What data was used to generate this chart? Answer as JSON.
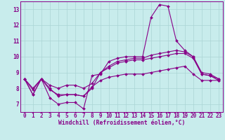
{
  "xlabel": "Windchill (Refroidissement éolien,°C)",
  "bg_color": "#c8ecec",
  "grid_color": "#aad4d4",
  "line_color": "#880088",
  "x_ticks": [
    0,
    1,
    2,
    3,
    4,
    5,
    6,
    7,
    8,
    9,
    10,
    11,
    12,
    13,
    14,
    15,
    16,
    17,
    18,
    19,
    20,
    21,
    22,
    23
  ],
  "y_ticks": [
    7,
    8,
    9,
    10,
    11,
    12,
    13
  ],
  "ylim": [
    6.5,
    13.5
  ],
  "xlim": [
    -0.5,
    23.5
  ],
  "lines": [
    [
      8.6,
      7.6,
      8.6,
      7.4,
      7.0,
      7.1,
      7.1,
      6.7,
      8.8,
      8.9,
      9.7,
      9.9,
      10.0,
      10.0,
      10.0,
      12.5,
      13.3,
      13.2,
      11.0,
      10.4,
      10.0,
      8.9,
      8.8,
      8.5
    ],
    [
      8.6,
      7.6,
      8.6,
      8.0,
      7.5,
      7.6,
      7.6,
      7.5,
      8.0,
      9.0,
      9.4,
      9.7,
      9.8,
      9.9,
      9.9,
      10.1,
      10.2,
      10.3,
      10.4,
      10.3,
      10.0,
      9.0,
      8.9,
      8.6
    ],
    [
      8.6,
      8.0,
      8.6,
      8.2,
      8.0,
      8.2,
      8.2,
      8.0,
      8.3,
      9.0,
      9.3,
      9.6,
      9.7,
      9.8,
      9.8,
      9.9,
      10.0,
      10.1,
      10.2,
      10.2,
      9.9,
      8.9,
      8.8,
      8.6
    ],
    [
      8.6,
      7.9,
      8.6,
      7.9,
      7.6,
      7.6,
      7.6,
      7.5,
      8.1,
      8.5,
      8.7,
      8.8,
      8.9,
      8.9,
      8.9,
      9.0,
      9.1,
      9.2,
      9.3,
      9.4,
      8.9,
      8.5,
      8.5,
      8.5
    ]
  ],
  "tick_fontsize": 5.5,
  "xlabel_fontsize": 5.8,
  "marker_size": 2.0,
  "linewidth": 0.8
}
